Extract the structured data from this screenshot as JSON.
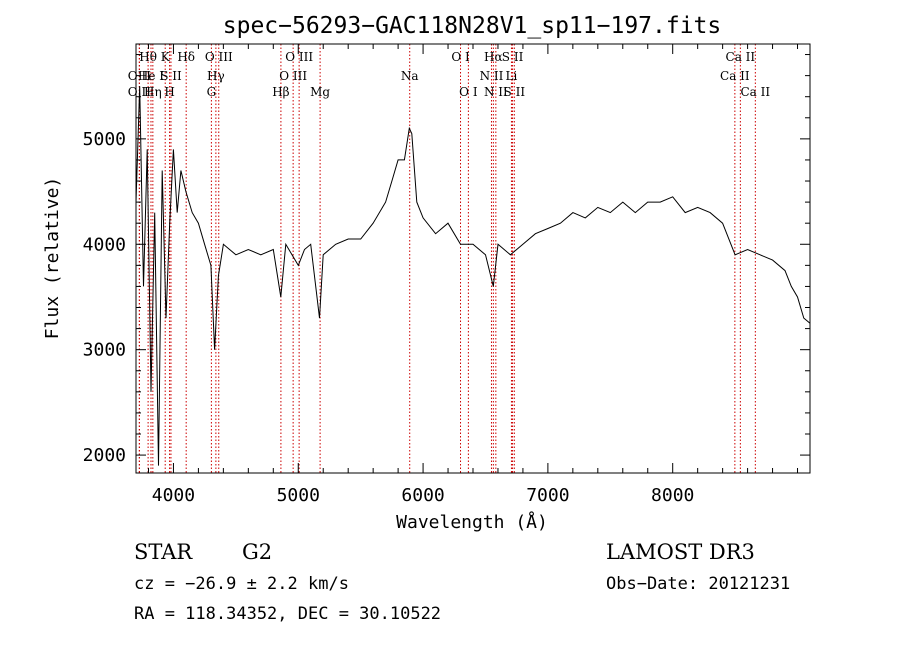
{
  "chart_data": {
    "type": "line",
    "title": "spec−56293−GAC118N28V1_sp11−197.fits",
    "xlabel": "Wavelength (Å)",
    "ylabel": "Flux (relative)",
    "xlim": [
      3700,
      9100
    ],
    "ylim": [
      1830,
      5900
    ],
    "x_ticks": [
      4000,
      5000,
      6000,
      7000,
      8000
    ],
    "x_tick_labels": [
      "4000",
      "5000",
      "6000",
      "7000",
      "8000"
    ],
    "y_ticks": [
      2000,
      3000,
      4000,
      5000
    ],
    "y_tick_labels": [
      "2000",
      "3000",
      "4000",
      "5000"
    ],
    "x_minor_step": 200,
    "y_minor_step": 200,
    "series": [
      {
        "name": "spectrum",
        "x": [
          3700,
          3730,
          3760,
          3790,
          3820,
          3850,
          3880,
          3910,
          3940,
          3970,
          4000,
          4030,
          4060,
          4100,
          4150,
          4200,
          4250,
          4300,
          4330,
          4360,
          4400,
          4450,
          4500,
          4600,
          4700,
          4800,
          4860,
          4900,
          5000,
          5050,
          5100,
          5170,
          5200,
          5300,
          5400,
          5500,
          5600,
          5700,
          5750,
          5800,
          5850,
          5890,
          5910,
          5950,
          6000,
          6100,
          6200,
          6300,
          6400,
          6500,
          6563,
          6600,
          6700,
          6800,
          6900,
          7000,
          7100,
          7200,
          7300,
          7400,
          7500,
          7600,
          7700,
          7800,
          7900,
          8000,
          8100,
          8200,
          8300,
          8400,
          8500,
          8600,
          8700,
          8800,
          8900,
          8950,
          9000,
          9050,
          9100
        ],
        "y": [
          4400,
          5500,
          3600,
          4900,
          2600,
          4300,
          1900,
          4700,
          3300,
          4200,
          4900,
          4300,
          4700,
          4500,
          4300,
          4200,
          4000,
          3800,
          3000,
          3700,
          4000,
          3950,
          3900,
          3950,
          3900,
          3950,
          3500,
          4000,
          3800,
          3950,
          4000,
          3300,
          3900,
          4000,
          4050,
          4050,
          4200,
          4400,
          4600,
          4800,
          4800,
          5100,
          5050,
          4400,
          4250,
          4100,
          4200,
          4000,
          4000,
          3900,
          3600,
          4000,
          3900,
          4000,
          4100,
          4150,
          4200,
          4300,
          4250,
          4350,
          4300,
          4400,
          4300,
          4400,
          4400,
          4450,
          4300,
          4350,
          4300,
          4200,
          3900,
          3950,
          3900,
          3850,
          3750,
          3600,
          3500,
          3300,
          3250
        ]
      }
    ],
    "lines": [
      {
        "label": "O II",
        "x": 3727,
        "row": 2
      },
      {
        "label": "O II",
        "x": 3727,
        "row": 1
      },
      {
        "label": "Hθ",
        "x": 3797,
        "row": 0
      },
      {
        "label": "He I",
        "x": 3820,
        "row": 1
      },
      {
        "label": "Hη",
        "x": 3835,
        "row": 2
      },
      {
        "label": "K",
        "x": 3934,
        "row": 0
      },
      {
        "label": "S II",
        "x": 3980,
        "row": 1
      },
      {
        "label": "H",
        "x": 3969,
        "row": 2
      },
      {
        "label": "Hδ",
        "x": 4102,
        "row": 0
      },
      {
        "label": "O III",
        "x": 4363,
        "row": 0
      },
      {
        "label": "Hγ",
        "x": 4340,
        "row": 1
      },
      {
        "label": "G",
        "x": 4304,
        "row": 2
      },
      {
        "label": "Hβ",
        "x": 4861,
        "row": 2
      },
      {
        "label": "O III",
        "x": 4959,
        "row": 1
      },
      {
        "label": "O III",
        "x": 5007,
        "row": 0
      },
      {
        "label": "Mg",
        "x": 5175,
        "row": 2
      },
      {
        "label": "Na",
        "x": 5893,
        "row": 1
      },
      {
        "label": "O I",
        "x": 6300,
        "row": 0
      },
      {
        "label": "O I",
        "x": 6363,
        "row": 2
      },
      {
        "label": "N II",
        "x": 6548,
        "row": 1
      },
      {
        "label": "Hα",
        "x": 6563,
        "row": 0
      },
      {
        "label": "N II",
        "x": 6583,
        "row": 2
      },
      {
        "label": "Li",
        "x": 6708,
        "row": 1
      },
      {
        "label": "S II",
        "x": 6717,
        "row": 0
      },
      {
        "label": "S II",
        "x": 6731,
        "row": 2
      },
      {
        "label": "Ca II",
        "x": 8498,
        "row": 1
      },
      {
        "label": "Ca II",
        "x": 8542,
        "row": 0
      },
      {
        "label": "Ca II",
        "x": 8662,
        "row": 2
      }
    ],
    "line_color": "#000000",
    "marker_color": "#cc0000"
  },
  "info": {
    "object_class": "STAR",
    "subclass": "G2",
    "survey": "LAMOST DR3",
    "redshift": "cz = −26.9 ± 2.2 km/s",
    "obs_date": "Obs−Date: 20121231",
    "coordinates": "RA = 118.34352, DEC =  30.10522"
  }
}
